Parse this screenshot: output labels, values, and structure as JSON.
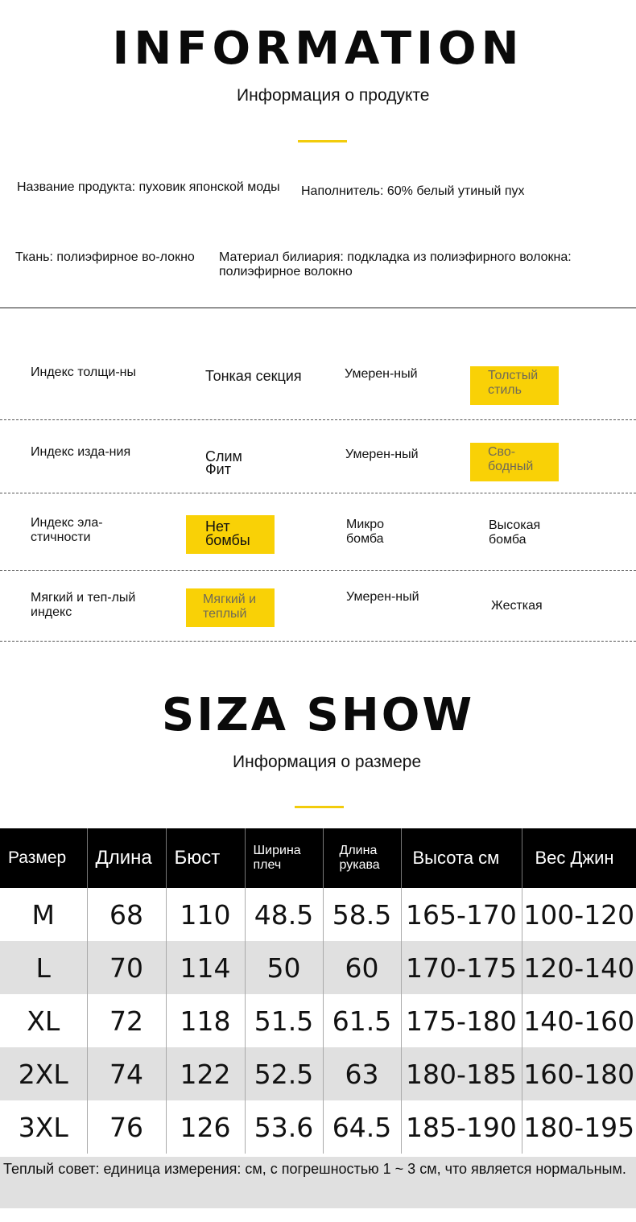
{
  "information": {
    "title": "INFORMATION",
    "subtitle": "Информация о продукте"
  },
  "specs": {
    "name": "Название продукта: пуховик японской моды",
    "filler": "Наполнитель: 60% белый утиный пух",
    "fabric": "Ткань: полиэфирное во-локно",
    "lining": "Материал билиария: подкладка из полиэфирного волокна: полиэфирное волокно"
  },
  "indices": [
    {
      "label": "Индекс толщи-ны",
      "options": [
        "Тонкая секция",
        "Умерен-ный",
        "Толстый стиль"
      ],
      "selected": 2
    },
    {
      "label": "Индекс изда-ния",
      "options": [
        "Слим Фит",
        "Умерен-ный",
        "Сво-бодный"
      ],
      "selected": 2
    },
    {
      "label": "Индекс эла-стичности",
      "options": [
        "Нет бомбы",
        "Микро бомба",
        "Высокая бомба"
      ],
      "selected": 0
    },
    {
      "label": "Мягкий и теп-лый индекс",
      "options": [
        "Мягкий и теплый",
        "Умерен-ный",
        "Жесткая"
      ],
      "selected": 0
    }
  ],
  "size_show": {
    "title": "SIZA SHOW",
    "subtitle": "Информация о размере"
  },
  "size_table": {
    "headers": [
      "Размер",
      "Длина",
      "Бюст",
      "Ширина плеч",
      "Длина рукава",
      "Высота см",
      "Вес Джин"
    ],
    "rows": [
      [
        "M",
        "68",
        "110",
        "48.5",
        "58.5",
        "165-170",
        "100-120"
      ],
      [
        "L",
        "70",
        "114",
        "50",
        "60",
        "170-175",
        "120-140"
      ],
      [
        "XL",
        "72",
        "118",
        "51.5",
        "61.5",
        "175-180",
        "140-160"
      ],
      [
        "2XL",
        "74",
        "122",
        "52.5",
        "63",
        "180-185",
        "160-180"
      ],
      [
        "3XL",
        "76",
        "126",
        "53.6",
        "64.5",
        "185-190",
        "180-195"
      ]
    ]
  },
  "note": "Теплый совет: единица измерения: см, с погрешностью 1 ~ 3 см, что является нормальным.",
  "colors": {
    "accent": "#f9d106",
    "header_bg": "#000000",
    "shade": "#e0e0e0"
  }
}
